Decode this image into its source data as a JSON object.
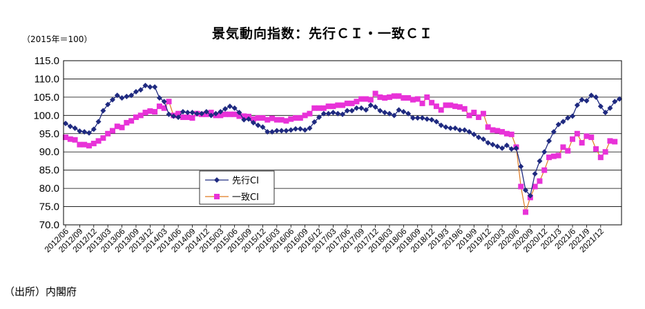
{
  "page": {
    "title": "景気動向指数：先行ＣＩ・一致ＣＩ",
    "unit_note": "（2015年＝100）",
    "source": "（出所）内閣府"
  },
  "chart_data": {
    "type": "line",
    "title": "景気動向指数：先行ＣＩ・一致ＣＩ",
    "xlabel": "",
    "ylabel": "（2015年＝100）",
    "ylim": [
      70,
      115
    ],
    "yticks": [
      "70.0",
      "75.0",
      "80.0",
      "85.0",
      "90.0",
      "95.0",
      "100.0",
      "105.0",
      "110.0",
      "115.0"
    ],
    "grid": true,
    "legend": "middle-left",
    "x_tick_labels": [
      "2012/06",
      "2012/09",
      "2012/12",
      "2013/03",
      "2013/06",
      "2013/09",
      "2013/12",
      "2014/03",
      "2014/06",
      "2014/09",
      "2014/12",
      "2015/03",
      "2015/06",
      "2015/09",
      "2015/12",
      "2016/03",
      "2016/06",
      "2016/09",
      "2016/12",
      "2017/03",
      "2017/06",
      "2017/09",
      "2017/12",
      "2018/03",
      "2018/06",
      "2018/09",
      "2018/12",
      "2019/3",
      "2019/6",
      "2019/9",
      "2019/12",
      "2020/3",
      "2020/6",
      "2020/9",
      "2020/12",
      "2021/3",
      "2021/6",
      "2021/9",
      "2021/12"
    ],
    "series": [
      {
        "name": "先行CI",
        "color": "#1F2A80",
        "marker": "diamond",
        "values": [
          97.8,
          97.0,
          96.5,
          95.7,
          95.5,
          95.2,
          96.2,
          98.3,
          101.3,
          103.0,
          104.3,
          105.5,
          104.8,
          105.2,
          105.5,
          106.5,
          107.0,
          108.2,
          107.8,
          107.8,
          104.8,
          103.8,
          100.3,
          99.8,
          99.5,
          101.0,
          100.8,
          100.8,
          100.5,
          100.5,
          101.0,
          100.0,
          100.5,
          101.0,
          101.8,
          102.5,
          102.0,
          100.8,
          98.8,
          99.0,
          98.0,
          97.3,
          96.8,
          95.5,
          95.5,
          95.8,
          95.8,
          95.8,
          96.0,
          96.3,
          96.3,
          96.0,
          96.5,
          98.2,
          99.5,
          100.5,
          100.5,
          100.8,
          100.5,
          100.3,
          101.3,
          101.3,
          102.0,
          102.0,
          101.5,
          102.8,
          102.3,
          101.3,
          100.8,
          100.5,
          100.0,
          101.5,
          101.0,
          100.5,
          99.3,
          99.3,
          99.3,
          99.0,
          98.8,
          98.3,
          97.3,
          96.8,
          96.5,
          96.5,
          96.0,
          96.0,
          95.5,
          94.8,
          94.0,
          93.5,
          92.5,
          92.0,
          91.5,
          91.0,
          91.8,
          90.8,
          91.0,
          86.0,
          79.5,
          78.0,
          84.0,
          87.5,
          90.0,
          93.0,
          95.5,
          97.5,
          98.3,
          99.3,
          99.8,
          102.8,
          104.3,
          104.0,
          105.5,
          105.0,
          102.5,
          100.8,
          102.0,
          103.8,
          104.5
        ]
      },
      {
        "name": "一致CI",
        "color": "#E832D8",
        "line_color": "#E0791F",
        "marker": "square",
        "values": [
          94.0,
          93.5,
          93.3,
          92.0,
          92.0,
          91.7,
          92.3,
          93.0,
          93.8,
          95.0,
          95.8,
          97.0,
          96.7,
          98.0,
          98.5,
          99.5,
          100.0,
          100.8,
          101.2,
          101.0,
          102.5,
          102.0,
          103.8,
          100.0,
          100.5,
          99.5,
          99.5,
          99.3,
          100.5,
          100.3,
          100.3,
          100.8,
          100.0,
          100.0,
          100.3,
          100.3,
          100.3,
          99.8,
          99.8,
          99.7,
          99.0,
          99.3,
          99.3,
          98.8,
          99.2,
          98.8,
          98.8,
          98.5,
          99.0,
          99.3,
          99.3,
          100.0,
          100.5,
          102.0,
          102.0,
          102.0,
          102.5,
          102.5,
          102.8,
          102.8,
          103.3,
          103.3,
          103.8,
          104.5,
          104.5,
          104.3,
          106.0,
          105.0,
          104.8,
          105.0,
          105.3,
          105.3,
          104.8,
          104.8,
          104.3,
          104.5,
          103.3,
          105.0,
          103.5,
          102.5,
          101.5,
          102.8,
          102.8,
          102.5,
          102.3,
          101.8,
          100.0,
          100.8,
          99.5,
          100.5,
          96.8,
          96.0,
          95.8,
          95.5,
          95.0,
          94.8,
          91.3,
          80.5,
          73.5,
          77.5,
          80.5,
          82.0,
          85.0,
          88.5,
          88.8,
          89.0,
          91.3,
          90.3,
          93.5,
          95.0,
          92.5,
          94.3,
          94.0,
          90.8,
          88.5,
          90.0,
          93.0,
          92.8
        ]
      }
    ]
  }
}
